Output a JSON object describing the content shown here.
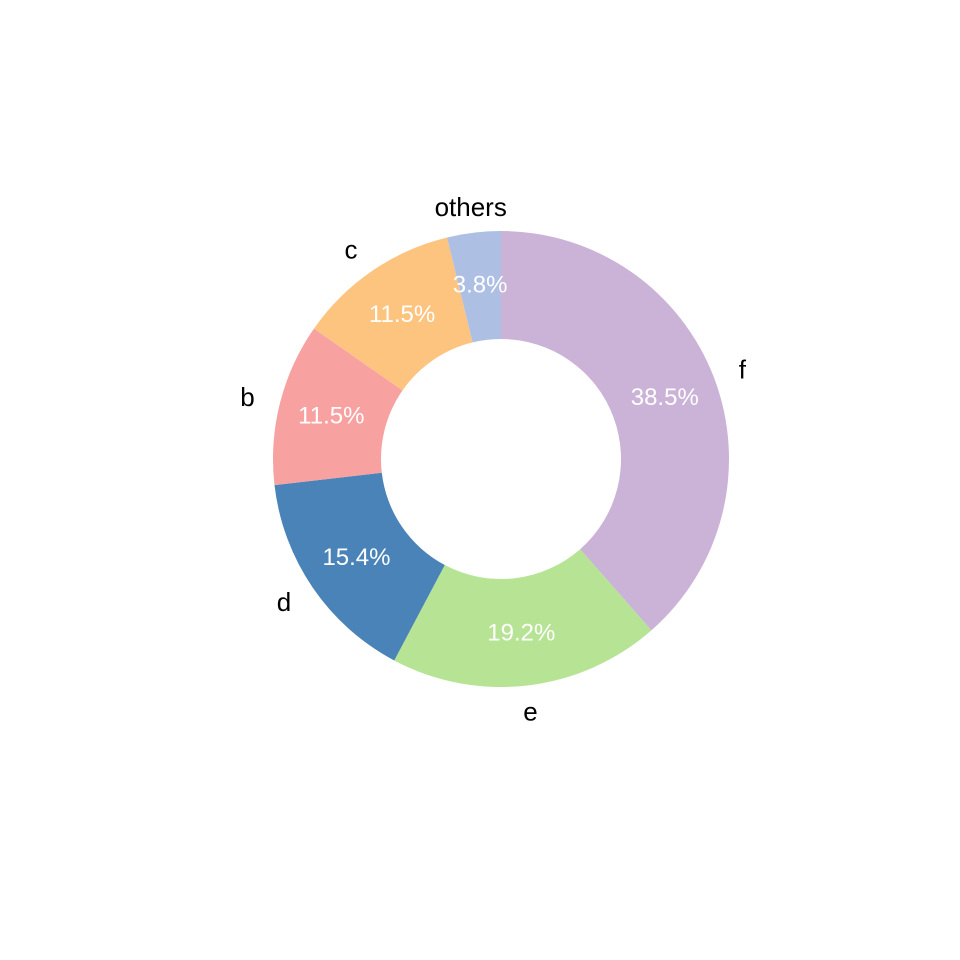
{
  "chart_data": {
    "type": "pie",
    "style": "donut",
    "start_angle": "top, clockwise",
    "slices": [
      {
        "label": "f",
        "value": 38.5,
        "pct_label": "38.5%",
        "color": "#CBB3D8"
      },
      {
        "label": "e",
        "value": 19.2,
        "pct_label": "19.2%",
        "color": "#B6E394"
      },
      {
        "label": "d",
        "value": 15.4,
        "pct_label": "15.4%",
        "color": "#4A83B8"
      },
      {
        "label": "b",
        "value": 11.5,
        "pct_label": "11.5%",
        "color": "#F7A1A1"
      },
      {
        "label": "c",
        "value": 11.5,
        "pct_label": "11.5%",
        "color": "#FDC480"
      },
      {
        "label": "others",
        "value": 3.8,
        "pct_label": "3.8%",
        "color": "#AEBFE4"
      }
    ]
  }
}
